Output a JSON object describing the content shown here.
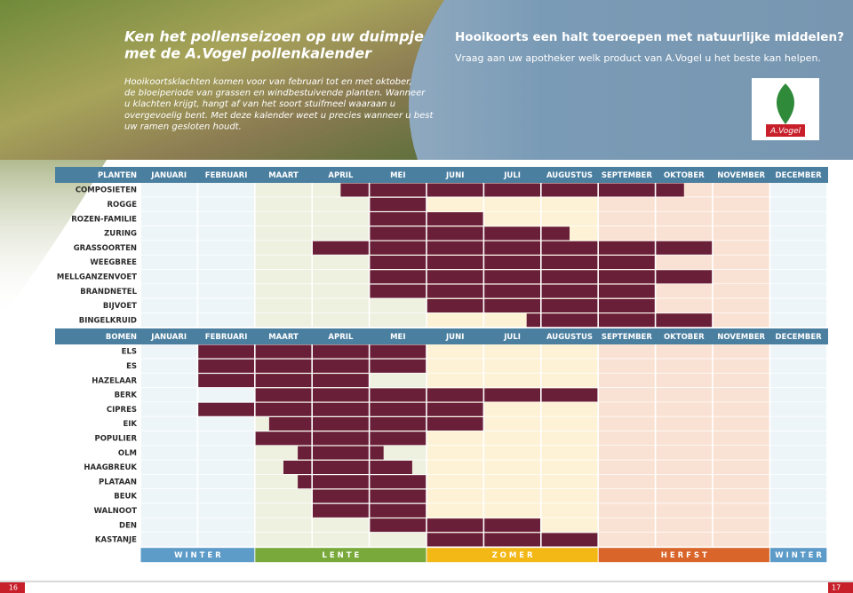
{
  "header": {
    "title": [
      "Ken het pollenseizoen op uw duimpje",
      "met de A.Vogel pollenkalender"
    ],
    "intro": [
      "Hooikoortsklachten komen voor van februari tot en met oktober,",
      "de bloeiperiode van grassen en windbestuivende planten. Wanneer",
      "u klachten krijgt, hangt af van het soort stuifmeel waaraan u",
      "overgevoelig bent. Met deze kalender weet u precies wanneer u best",
      "uw ramen gesloten houdt."
    ]
  },
  "promo": {
    "title": "Hooikoorts een halt toeroepen met natuurlijke middelen?",
    "text": "Vraag aan uw apotheker welk product van A.Vogel u het beste kan helpen.",
    "logo": "A.Vogel"
  },
  "calendar": {
    "bar_color": "#6a1f38",
    "months": [
      "JANUARI",
      "FEBRUARI",
      "MAART",
      "APRIL",
      "MEI",
      "JUNI",
      "JULI",
      "AUGUSTUS",
      "SEPTEMBER",
      "OKTOBER",
      "NOVEMBER",
      "DECEMBER"
    ],
    "groups": [
      {
        "name": "PLANTEN",
        "items": [
          {
            "name": "COMPOSIETEN",
            "start": 3.5,
            "end": 9.5
          },
          {
            "name": "ROGGE",
            "start": 4,
            "end": 5
          },
          {
            "name": "ROZEN-FAMILIE",
            "start": 4,
            "end": 6
          },
          {
            "name": "ZURING",
            "start": 4,
            "end": 7.5
          },
          {
            "name": "GRASSOORTEN",
            "start": 3,
            "end": 10
          },
          {
            "name": "WEEGBREE",
            "start": 4,
            "end": 9
          },
          {
            "name": "MELLGANZENVOET",
            "start": 4,
            "end": 10
          },
          {
            "name": "BRANDNETEL",
            "start": 4,
            "end": 9
          },
          {
            "name": "BIJVOET",
            "start": 5,
            "end": 9
          },
          {
            "name": "BINGELKRUID",
            "start": 6.75,
            "end": 10
          }
        ]
      },
      {
        "name": "BOMEN",
        "items": [
          {
            "name": "ELS",
            "start": 1,
            "end": 5
          },
          {
            "name": "ES",
            "start": 1,
            "end": 5
          },
          {
            "name": "HAZELAAR",
            "start": 1,
            "end": 4
          },
          {
            "name": "BERK",
            "start": 2,
            "end": 8
          },
          {
            "name": "CIPRES",
            "start": 1,
            "end": 6
          },
          {
            "name": "EIK",
            "start": 2.25,
            "end": 6
          },
          {
            "name": "POPULIER",
            "start": 2,
            "end": 5
          },
          {
            "name": "OLM",
            "start": 2.75,
            "end": 4.25
          },
          {
            "name": "HAAGBREUK",
            "start": 2.5,
            "end": 4.75
          },
          {
            "name": "PLATAAN",
            "start": 2.75,
            "end": 5
          },
          {
            "name": "BEUK",
            "start": 3,
            "end": 5
          },
          {
            "name": "WALNOOT",
            "start": 3,
            "end": 5
          },
          {
            "name": "DEN",
            "start": 4,
            "end": 7
          },
          {
            "name": "KASTANJE",
            "start": 5,
            "end": 8
          }
        ]
      }
    ],
    "seasons": [
      "W I N T E R",
      "L E N T E",
      "Z O M E R",
      "H E R F S T",
      "W I N T E R"
    ]
  },
  "pages": [
    "16",
    "17"
  ]
}
